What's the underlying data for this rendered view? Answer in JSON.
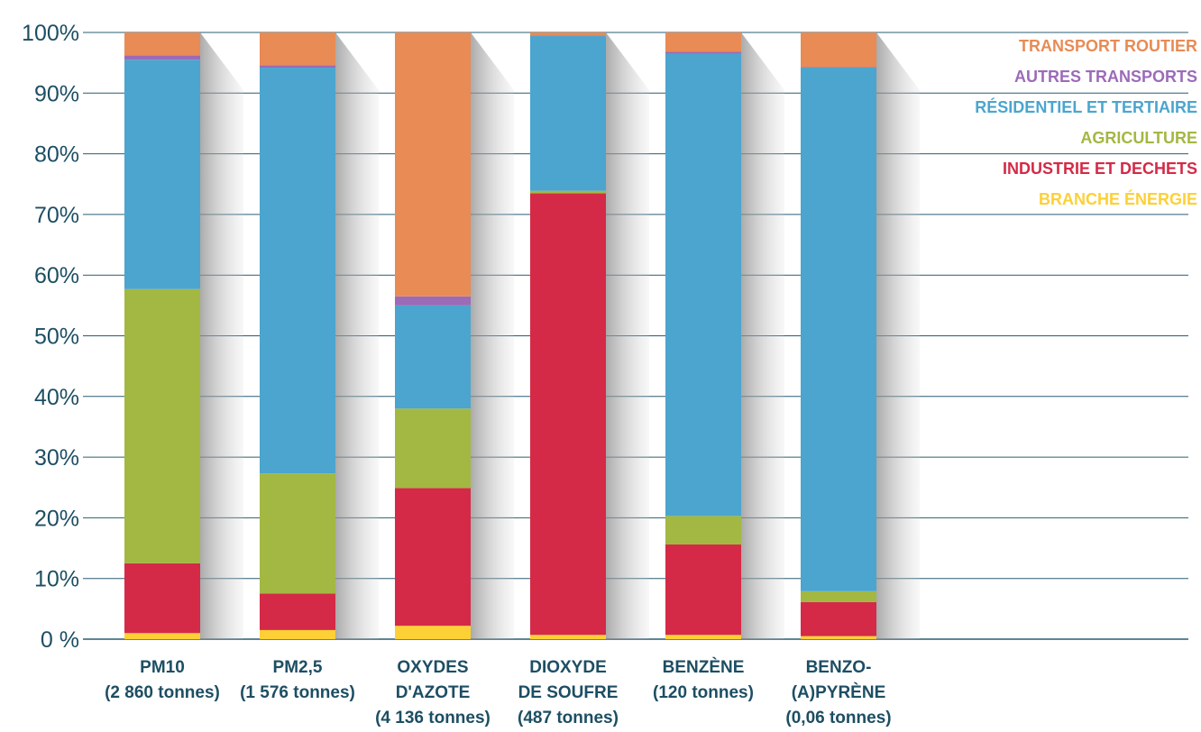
{
  "chart_data": {
    "type": "bar",
    "stacked": true,
    "percent": true,
    "y_ticks": [
      "0 %",
      "10%",
      "20%",
      "30%",
      "40%",
      "50%",
      "60%",
      "70%",
      "80%",
      "90%",
      "100%"
    ],
    "ylim": [
      0,
      100
    ],
    "grid": true,
    "legend_position": "top-right",
    "categories": [
      [
        "PM10",
        "(2 860 tonnes)"
      ],
      [
        "PM2,5",
        "(1 576 tonnes)"
      ],
      [
        "OXYDES",
        "D'AZOTE",
        "(4 136 tonnes)"
      ],
      [
        "DIOXYDE",
        "DE SOUFRE",
        "(487 tonnes)"
      ],
      [
        "BENZÈNE",
        "(120 tonnes)"
      ],
      [
        "BENZO-",
        "(A)PYRÈNE",
        "(0,06 tonnes)"
      ]
    ],
    "series": [
      {
        "name": "BRANCHE ÉNERGIE",
        "color": "#fdd036",
        "values": [
          1.0,
          1.5,
          2.2,
          0.7,
          0.7,
          0.5
        ]
      },
      {
        "name": "INDUSTRIE ET DECHETS",
        "color": "#d42a47",
        "values": [
          11.5,
          6.0,
          22.7,
          72.8,
          14.9,
          5.6
        ]
      },
      {
        "name": "AGRICULTURE",
        "color": "#a3b842",
        "values": [
          45.2,
          19.8,
          13.1,
          0.4,
          4.7,
          1.8
        ]
      },
      {
        "name": "RÉSIDENTIEL ET TERTIAIRE",
        "color": "#4ba5ce",
        "values": [
          37.8,
          66.9,
          17.0,
          25.5,
          76.2,
          86.3
        ]
      },
      {
        "name": "AUTRES TRANSPORTS",
        "color": "#9b6bb8",
        "values": [
          0.7,
          0.4,
          1.5,
          0.1,
          0.3,
          0.1
        ]
      },
      {
        "name": "TRANSPORT ROUTIER",
        "color": "#e88b55",
        "values": [
          3.8,
          5.4,
          43.5,
          0.5,
          3.2,
          5.7
        ]
      }
    ]
  }
}
